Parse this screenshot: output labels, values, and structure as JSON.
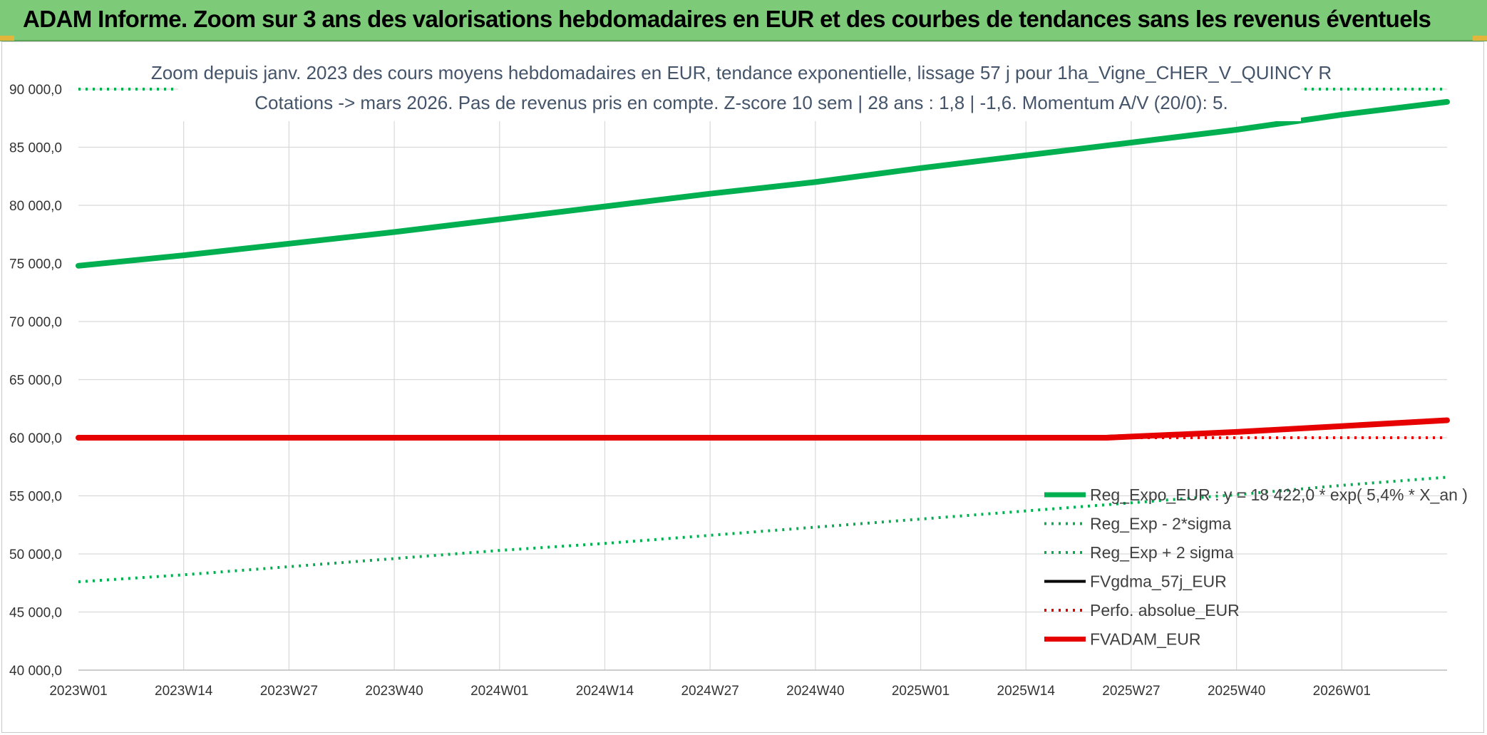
{
  "header": {
    "title": "ADAM Informe. Zoom sur 3 ans des valorisations hebdomadaires en EUR et des courbes de tendances sans les revenus éventuels"
  },
  "colors": {
    "banner": "#7dcb79",
    "reg_expo": "#00b050",
    "fvgdma": "#000000",
    "fvadam": "#e60000",
    "grid": "#d9d9d9",
    "title_text": "#44546a"
  },
  "chart_data": {
    "type": "line",
    "title": "Zoom depuis janv. 2023 des cours moyens hebdomadaires en EUR, tendance exponentielle, lissage 57 j pour 1ha_Vigne_CHER_V_QUINCY R",
    "subtitle": "Cotations -> mars 2026. Pas de revenus pris en compte. Z-score 10 sem | 28 ans : 1,8 | -1,6. Momentum A/V (20/0): 5.",
    "xlabel": "",
    "ylabel": "",
    "ylim": [
      40000,
      90000
    ],
    "yticks": [
      40000,
      45000,
      50000,
      55000,
      60000,
      65000,
      70000,
      75000,
      80000,
      85000,
      90000
    ],
    "ytick_labels": [
      "40 000,0",
      "45 000,0",
      "50 000,0",
      "55 000,0",
      "60 000,0",
      "65 000,0",
      "70 000,0",
      "75 000,0",
      "80 000,0",
      "85 000,0",
      "90 000,0"
    ],
    "x_labels": [
      "2023W01",
      "2023W14",
      "2023W27",
      "2023W40",
      "2024W01",
      "2024W14",
      "2024W27",
      "2024W40",
      "2025W01",
      "2025W14",
      "2025W27",
      "2025W40",
      "2026W01"
    ],
    "x_range_weeks": [
      0,
      169
    ],
    "grid": true,
    "legend_position": "bottom-right",
    "series": [
      {
        "name": "Reg_Expo_EUR : y = 18 422,0 * exp( 5,4% *  X_an )",
        "style": "solid-thick",
        "color": "#00b050",
        "points": [
          [
            0,
            74800
          ],
          [
            13,
            75700
          ],
          [
            26,
            76700
          ],
          [
            39,
            77700
          ],
          [
            52,
            78800
          ],
          [
            65,
            79900
          ],
          [
            78,
            81000
          ],
          [
            91,
            82000
          ],
          [
            104,
            83200
          ],
          [
            117,
            84300
          ],
          [
            130,
            85400
          ],
          [
            143,
            86500
          ],
          [
            156,
            87800
          ],
          [
            169,
            88900
          ]
        ]
      },
      {
        "name": "Reg_Exp - 2*sigma",
        "style": "dotted",
        "color": "#00b050",
        "points": [
          [
            0,
            47600
          ],
          [
            13,
            48200
          ],
          [
            26,
            48900
          ],
          [
            39,
            49600
          ],
          [
            52,
            50300
          ],
          [
            65,
            50900
          ],
          [
            78,
            51600
          ],
          [
            91,
            52300
          ],
          [
            104,
            53000
          ],
          [
            117,
            53700
          ],
          [
            130,
            54400
          ],
          [
            143,
            55100
          ],
          [
            156,
            55900
          ],
          [
            169,
            56600
          ]
        ]
      },
      {
        "name": "Reg_Exp + 2 sigma",
        "style": "dotted",
        "color": "#00b050",
        "points": [
          [
            0,
            90000
          ],
          [
            169,
            90000
          ]
        ]
      },
      {
        "name": "FVgdma_57j_EUR",
        "style": "solid",
        "color": "#000000",
        "points": [
          [
            0,
            60000
          ],
          [
            120,
            60000
          ],
          [
            126,
            60100
          ],
          [
            130,
            60200
          ],
          [
            143,
            60500
          ],
          [
            156,
            61000
          ],
          [
            169,
            61500
          ]
        ]
      },
      {
        "name": "Perfo. absolue_EUR",
        "style": "dotted",
        "color": "#e60000",
        "points": [
          [
            0,
            60000
          ],
          [
            169,
            60000
          ]
        ]
      },
      {
        "name": "FVADAM_EUR",
        "style": "solid-thick",
        "color": "#e60000",
        "points": [
          [
            0,
            60000
          ],
          [
            127,
            60000
          ],
          [
            130,
            60100
          ],
          [
            143,
            60500
          ],
          [
            156,
            61000
          ],
          [
            169,
            61500
          ]
        ]
      }
    ]
  }
}
